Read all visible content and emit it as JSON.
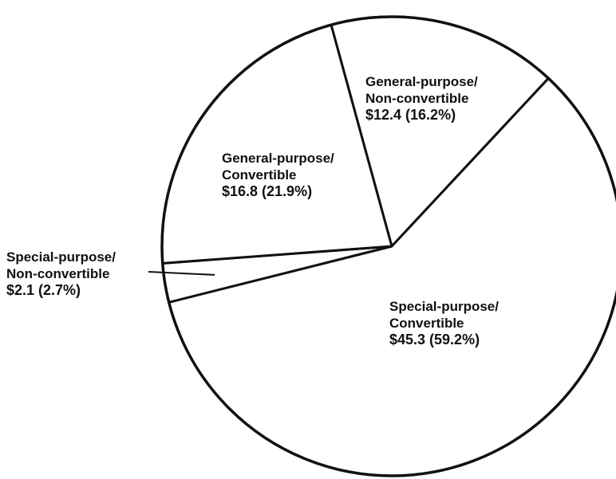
{
  "chart_data": {
    "type": "pie",
    "slices": [
      {
        "label_lines": [
          "General-purpose/",
          "Non-convertible"
        ],
        "value_text": "$12.4 (16.2%)",
        "value": 12.4,
        "percent": 16.2
      },
      {
        "label_lines": [
          "Special-purpose/",
          "Convertible"
        ],
        "value_text": "$45.3 (59.2%)",
        "value": 45.3,
        "percent": 59.2
      },
      {
        "label_lines": [
          "Special-purpose/",
          "Non-convertible"
        ],
        "value_text": "$2.1 (2.7%)",
        "value": 2.1,
        "percent": 2.7
      },
      {
        "label_lines": [
          "General-purpose/",
          "Convertible"
        ],
        "value_text": "$16.8 (21.9%)",
        "value": 16.8,
        "percent": 21.9
      }
    ]
  }
}
